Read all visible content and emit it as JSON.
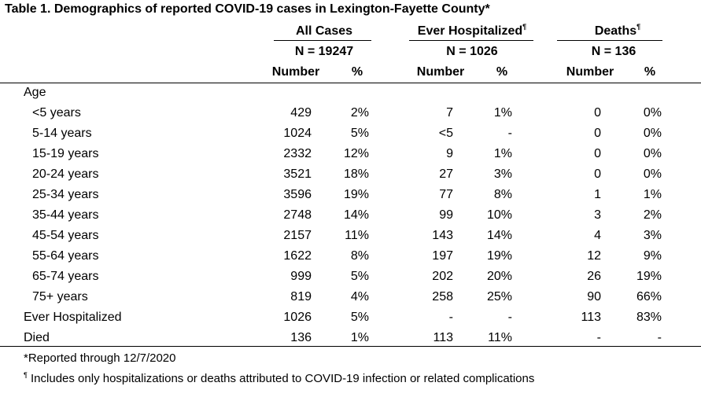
{
  "title": "Table 1. Demographics of reported COVID-19 cases in Lexington-Fayette County*",
  "groups": {
    "all": {
      "label": "All Cases",
      "n": "N = 19247"
    },
    "hosp": {
      "label": "Ever Hospitalized",
      "mark": "¶",
      "n": "N = 1026"
    },
    "deaths": {
      "label": "Deaths",
      "mark": "¶",
      "n": "N = 136"
    }
  },
  "col_headers": {
    "number": "Number",
    "percent": "%"
  },
  "section_label": "Age",
  "rows": [
    {
      "label": "<5 years",
      "v": [
        "429",
        "2%",
        "7",
        "1%",
        "0",
        "0%"
      ]
    },
    {
      "label": "5-14 years",
      "v": [
        "1024",
        "5%",
        "<5",
        "-",
        "0",
        "0%"
      ]
    },
    {
      "label": "15-19 years",
      "v": [
        "2332",
        "12%",
        "9",
        "1%",
        "0",
        "0%"
      ]
    },
    {
      "label": "20-24 years",
      "v": [
        "3521",
        "18%",
        "27",
        "3%",
        "0",
        "0%"
      ]
    },
    {
      "label": "25-34 years",
      "v": [
        "3596",
        "19%",
        "77",
        "8%",
        "1",
        "1%"
      ]
    },
    {
      "label": "35-44 years",
      "v": [
        "2748",
        "14%",
        "99",
        "10%",
        "3",
        "2%"
      ]
    },
    {
      "label": "45-54 years",
      "v": [
        "2157",
        "11%",
        "143",
        "14%",
        "4",
        "3%"
      ]
    },
    {
      "label": "55-64 years",
      "v": [
        "1622",
        "8%",
        "197",
        "19%",
        "12",
        "9%"
      ]
    },
    {
      "label": "65-74 years",
      "v": [
        "999",
        "5%",
        "202",
        "20%",
        "26",
        "19%"
      ]
    },
    {
      "label": "75+ years",
      "v": [
        "819",
        "4%",
        "258",
        "25%",
        "90",
        "66%"
      ]
    }
  ],
  "summary_rows": [
    {
      "label": "Ever Hospitalized",
      "v": [
        "1026",
        "5%",
        "-",
        "-",
        "113",
        "83%"
      ]
    },
    {
      "label": "Died",
      "v": [
        "136",
        "1%",
        "113",
        "11%",
        "-",
        "-"
      ]
    }
  ],
  "footnotes": {
    "reported": "*Reported through 12/7/2020",
    "mark": "¶",
    "includes": "Includes only hospitalizations or deaths attributed to COVID-19 infection or related complications"
  }
}
